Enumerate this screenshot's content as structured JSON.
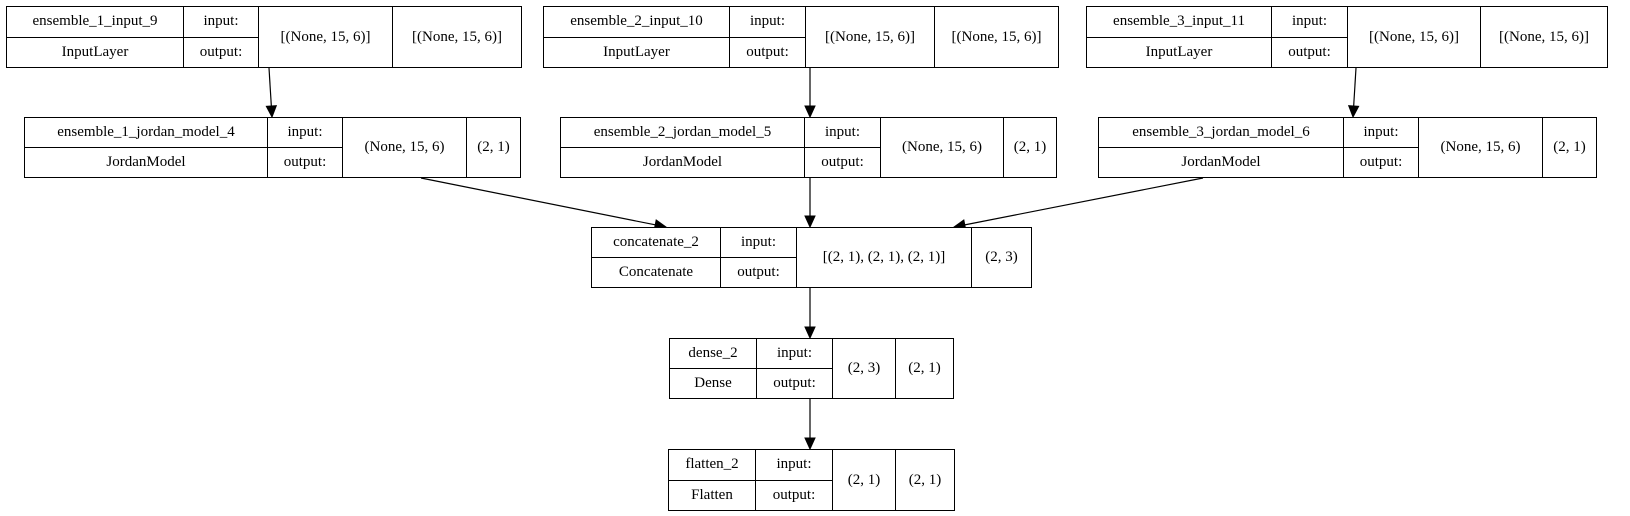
{
  "nodes": [
    {
      "key": "ensemble_1_input_9",
      "name": "ensemble_1_input_9",
      "type": "InputLayer",
      "input_label": "input:",
      "output_label": "output:",
      "input_shape": "[(None, 15, 6)]",
      "output_shape": "[(None, 15, 6)]"
    },
    {
      "key": "ensemble_2_input_10",
      "name": "ensemble_2_input_10",
      "type": "InputLayer",
      "input_label": "input:",
      "output_label": "output:",
      "input_shape": "[(None, 15, 6)]",
      "output_shape": "[(None, 15, 6)]"
    },
    {
      "key": "ensemble_3_input_11",
      "name": "ensemble_3_input_11",
      "type": "InputLayer",
      "input_label": "input:",
      "output_label": "output:",
      "input_shape": "[(None, 15, 6)]",
      "output_shape": "[(None, 15, 6)]"
    },
    {
      "key": "ensemble_1_jordan_model_4",
      "name": "ensemble_1_jordan_model_4",
      "type": "JordanModel",
      "input_label": "input:",
      "output_label": "output:",
      "input_shape": "(None, 15, 6)",
      "output_shape": "(2, 1)"
    },
    {
      "key": "ensemble_2_jordan_model_5",
      "name": "ensemble_2_jordan_model_5",
      "type": "JordanModel",
      "input_label": "input:",
      "output_label": "output:",
      "input_shape": "(None, 15, 6)",
      "output_shape": "(2, 1)"
    },
    {
      "key": "ensemble_3_jordan_model_6",
      "name": "ensemble_3_jordan_model_6",
      "type": "JordanModel",
      "input_label": "input:",
      "output_label": "output:",
      "input_shape": "(None, 15, 6)",
      "output_shape": "(2, 1)"
    },
    {
      "key": "concatenate_2",
      "name": "concatenate_2",
      "type": "Concatenate",
      "input_label": "input:",
      "output_label": "output:",
      "input_shape": "[(2, 1), (2, 1), (2, 1)]",
      "output_shape": "(2, 3)"
    },
    {
      "key": "dense_2",
      "name": "dense_2",
      "type": "Dense",
      "input_label": "input:",
      "output_label": "output:",
      "input_shape": "(2, 3)",
      "output_shape": "(2, 1)"
    },
    {
      "key": "flatten_2",
      "name": "flatten_2",
      "type": "Flatten",
      "input_label": "input:",
      "output_label": "output:",
      "input_shape": "(2, 1)",
      "output_shape": "(2, 1)"
    }
  ],
  "edges": [
    {
      "from": "ensemble_1_input_9",
      "to": "ensemble_1_jordan_model_4"
    },
    {
      "from": "ensemble_2_input_10",
      "to": "ensemble_2_jordan_model_5"
    },
    {
      "from": "ensemble_3_input_11",
      "to": "ensemble_3_jordan_model_6"
    },
    {
      "from": "ensemble_1_jordan_model_4",
      "to": "concatenate_2"
    },
    {
      "from": "ensemble_2_jordan_model_5",
      "to": "concatenate_2"
    },
    {
      "from": "ensemble_3_jordan_model_6",
      "to": "concatenate_2"
    },
    {
      "from": "concatenate_2",
      "to": "dense_2"
    },
    {
      "from": "dense_2",
      "to": "flatten_2"
    }
  ],
  "colors": {
    "line": "#000000",
    "background": "#ffffff",
    "text": "#000000"
  }
}
